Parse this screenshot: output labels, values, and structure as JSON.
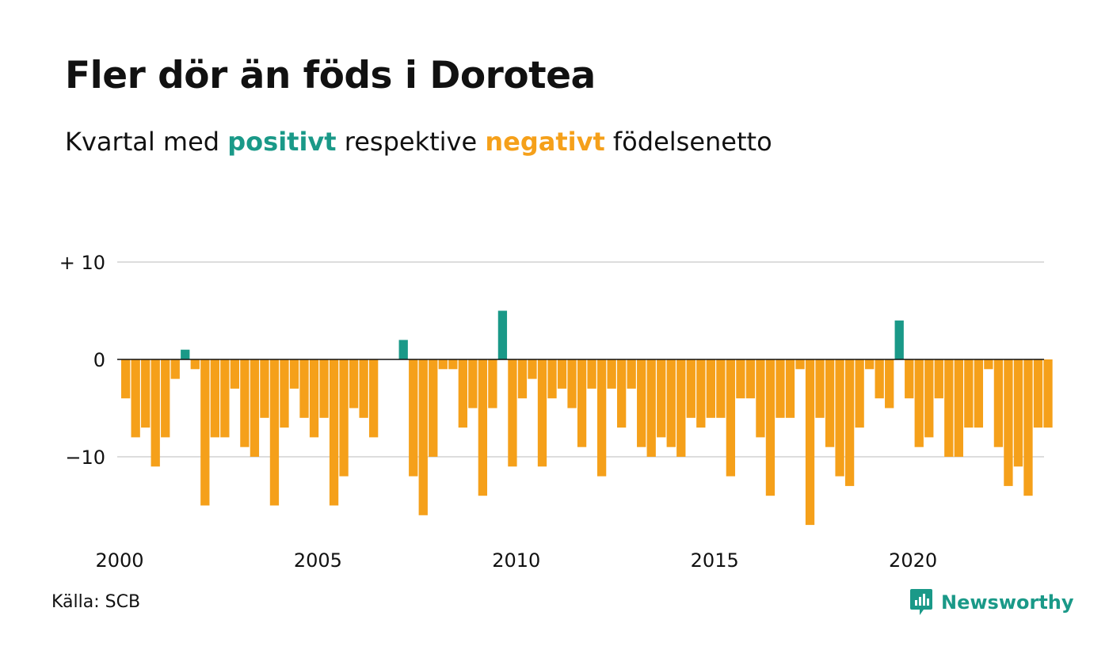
{
  "title": "Fler dör än föds i Dorotea",
  "subtitle": {
    "prefix": "Kvartal med ",
    "positive": "positivt",
    "middle": " respektive ",
    "negative": "negativt",
    "suffix": " födelsenetto"
  },
  "source": "Källa: SCB",
  "brand": "Newsworthy",
  "colors": {
    "positive": "#1a9988",
    "negative": "#f5a01a",
    "gridline": "#dddddd",
    "zeroline": "#111111"
  },
  "chart_data": {
    "type": "bar",
    "x_start": "2000 Q1",
    "frequency": "quarterly",
    "values": [
      -4,
      -8,
      -7,
      -11,
      -8,
      -2,
      1,
      -1,
      -15,
      -8,
      -8,
      -3,
      -9,
      -10,
      -6,
      -15,
      -7,
      -3,
      -6,
      -8,
      -6,
      -15,
      -12,
      -5,
      -6,
      -8,
      0,
      0,
      2,
      -12,
      -16,
      -10,
      -1,
      -1,
      -7,
      -5,
      -14,
      -5,
      5,
      -11,
      -4,
      -2,
      -11,
      -4,
      -3,
      -5,
      -9,
      -3,
      -12,
      -3,
      -7,
      -3,
      -9,
      -10,
      -8,
      -9,
      -10,
      -6,
      -7,
      -6,
      -6,
      -12,
      -4,
      -4,
      -8,
      -14,
      -6,
      -6,
      -1,
      -17,
      -6,
      -9,
      -12,
      -13,
      -7,
      -1,
      -4,
      -5,
      4,
      -4,
      -9,
      -8,
      -4,
      -10,
      -10,
      -7,
      -7,
      -1,
      -9,
      -13,
      -11,
      -14,
      -7,
      -7
    ],
    "ylim": [
      -18,
      10
    ],
    "y_ticks": [
      {
        "value": 10,
        "label": "+ 10"
      },
      {
        "value": 0,
        "label": "0"
      },
      {
        "value": -10,
        "label": "−10"
      }
    ],
    "x_ticks": [
      "2000",
      "2005",
      "2010",
      "2015",
      "2020"
    ],
    "grid": true
  }
}
